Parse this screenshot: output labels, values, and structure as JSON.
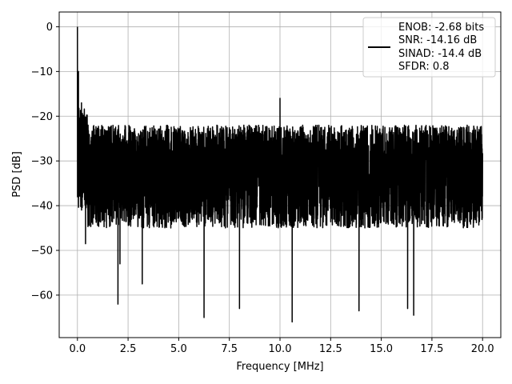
{
  "chart_data": {
    "type": "line",
    "title": "",
    "xlabel": "Frequency [MHz]",
    "ylabel": "PSD [dB]",
    "xlim": [
      -0.9,
      20.9
    ],
    "ylim": [
      -69.5,
      3.3
    ],
    "xticks": [
      0.0,
      2.5,
      5.0,
      7.5,
      10.0,
      12.5,
      15.0,
      17.5,
      20.0
    ],
    "xtick_labels": [
      "0.0",
      "2.5",
      "5.0",
      "7.5",
      "10.0",
      "12.5",
      "15.0",
      "17.5",
      "20.0"
    ],
    "yticks": [
      0,
      -10,
      -20,
      -30,
      -40,
      -50,
      -60
    ],
    "ytick_labels": [
      "0",
      "−10",
      "−20",
      "−30",
      "−40",
      "−50",
      "−60"
    ],
    "grid": true,
    "legend_position": "top-right",
    "legend_lines": [
      "ENOB: -2.68 bits",
      "SNR: -14.16 dB",
      "SINAD: -14.4 dB",
      "SFDR: 0.8"
    ],
    "series": [
      {
        "color": "#000000",
        "x_range": [
          0,
          20
        ],
        "noise_floor_db": -31,
        "noise_upper_db": -22,
        "noise_lower_db": -45,
        "peak": {
          "x": 0.0,
          "y": 0.0
        },
        "notable_points": [
          {
            "x": 0.05,
            "y": -10
          },
          {
            "x": 0.2,
            "y": -17
          },
          {
            "x": 0.4,
            "y": -48.5
          },
          {
            "x": 2.0,
            "y": -62
          },
          {
            "x": 2.1,
            "y": -53
          },
          {
            "x": 3.2,
            "y": -57.5
          },
          {
            "x": 6.25,
            "y": -65
          },
          {
            "x": 8.0,
            "y": -63
          },
          {
            "x": 10.0,
            "y": -16
          },
          {
            "x": 10.6,
            "y": -66
          },
          {
            "x": 13.9,
            "y": -63.5
          },
          {
            "x": 16.3,
            "y": -63
          },
          {
            "x": 16.6,
            "y": -64.5
          }
        ]
      }
    ]
  }
}
